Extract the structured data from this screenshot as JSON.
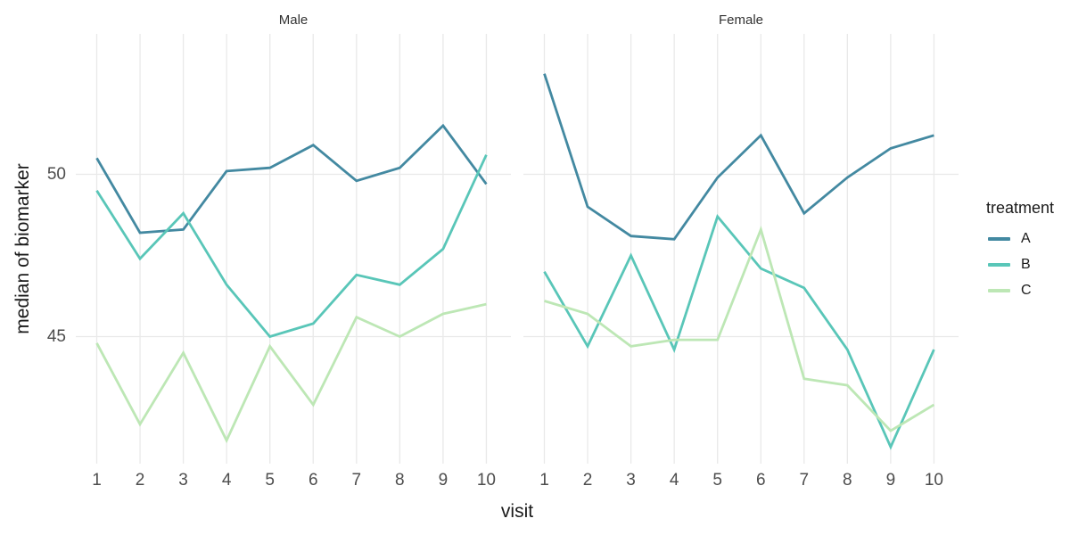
{
  "chart_data": {
    "type": "line",
    "title": "",
    "xlabel": "visit",
    "ylabel": "median of biomarker",
    "x": [
      1,
      2,
      3,
      4,
      5,
      6,
      7,
      8,
      9,
      10
    ],
    "yticks": [
      {
        "value": 50,
        "label": "50"
      },
      {
        "value": 45,
        "label": "45"
      }
    ],
    "ylim": [
      41.1,
      54.3
    ],
    "grid": "major-only",
    "legend": {
      "title": "treatment",
      "position": "right",
      "entries": [
        "A",
        "B",
        "C"
      ]
    },
    "colors": {
      "A": "#4389a1",
      "B": "#59c6b8",
      "C": "#bde7b5",
      "grid": "#e9e9e9",
      "tick_text": "#4d4d4d",
      "title_text": "#1a1a1a",
      "strip_text": "#333333",
      "background": "#ffffff"
    },
    "facets": [
      {
        "label": "Male",
        "series": [
          {
            "name": "A",
            "values": [
              50.5,
              48.2,
              48.3,
              50.1,
              50.2,
              50.9,
              49.8,
              50.2,
              51.5,
              49.7
            ]
          },
          {
            "name": "B",
            "values": [
              49.5,
              47.4,
              48.8,
              46.6,
              45.0,
              45.4,
              46.9,
              46.6,
              47.7,
              50.6
            ]
          },
          {
            "name": "C",
            "values": [
              44.8,
              42.3,
              44.5,
              41.8,
              44.7,
              42.9,
              45.6,
              45.0,
              45.7,
              46.0
            ]
          }
        ]
      },
      {
        "label": "Female",
        "series": [
          {
            "name": "A",
            "values": [
              53.1,
              49.0,
              48.1,
              48.0,
              49.9,
              51.2,
              48.8,
              49.9,
              50.8,
              51.2
            ]
          },
          {
            "name": "B",
            "values": [
              47.0,
              44.7,
              47.5,
              44.6,
              48.7,
              47.1,
              46.5,
              44.6,
              41.6,
              44.6
            ]
          },
          {
            "name": "C",
            "values": [
              46.1,
              45.7,
              44.7,
              44.9,
              44.9,
              48.3,
              43.7,
              43.5,
              42.1,
              42.9
            ]
          }
        ]
      }
    ]
  }
}
